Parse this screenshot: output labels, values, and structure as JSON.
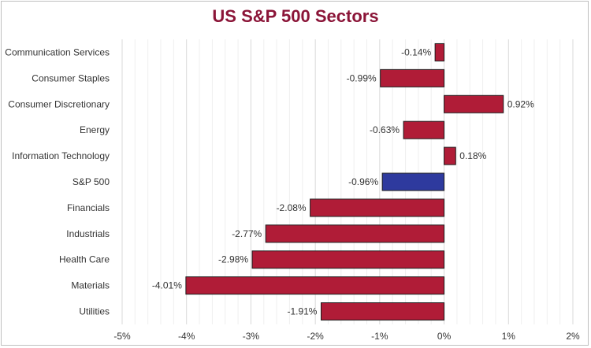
{
  "chart_data": {
    "type": "bar",
    "orientation": "horizontal",
    "title": "US S&P 500 Sectors",
    "categories": [
      "Communication Services",
      "Consumer Staples",
      "Consumer Discretionary",
      "Energy",
      "Information Technology",
      "S&P 500",
      "Financials",
      "Industrials",
      "Health Care",
      "Materials",
      "Utilities"
    ],
    "values": [
      -0.14,
      -0.99,
      0.92,
      -0.63,
      0.18,
      -0.96,
      -2.08,
      -2.77,
      -2.98,
      -4.01,
      -1.91
    ],
    "data_labels": [
      "-0.14%",
      "-0.99%",
      "0.92%",
      "-0.63%",
      "0.18%",
      "-0.96%",
      "-2.08%",
      "-2.77%",
      "-2.98%",
      "-4.01%",
      "-1.91%"
    ],
    "xlim": [
      -5,
      2
    ],
    "x_ticks": [
      -5,
      -4,
      -3,
      -2,
      -1,
      0,
      1,
      2
    ],
    "x_tick_labels": [
      "-5%",
      "-4%",
      "-3%",
      "-2%",
      "-1%",
      "0%",
      "1%",
      "2%"
    ],
    "grid": true,
    "legend": "none",
    "colors": {
      "bar": "#b01c37",
      "highlight": "#2e3a9e",
      "highlight_category": "S&P 500",
      "title": "#8b1538"
    }
  }
}
